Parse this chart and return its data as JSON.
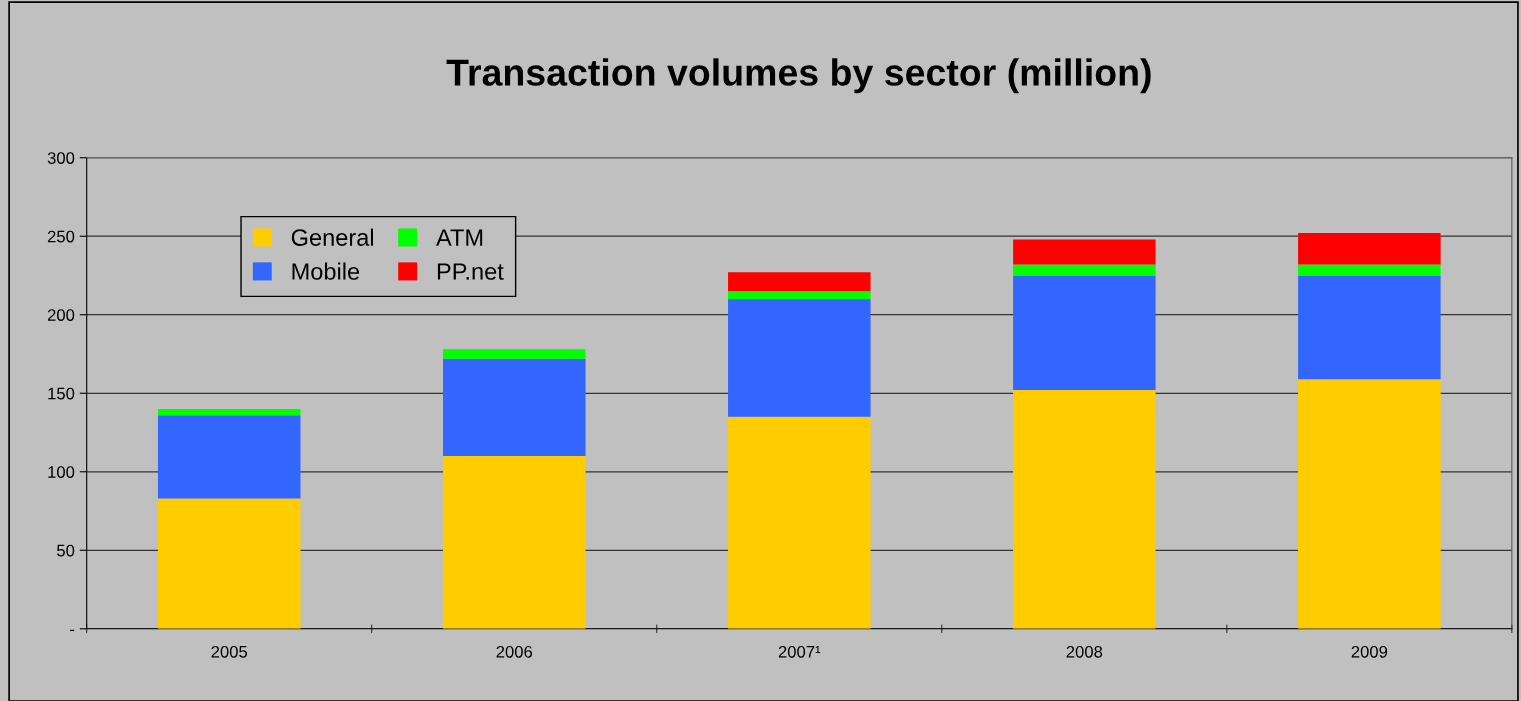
{
  "chart_data": {
    "type": "bar",
    "title": "Transaction volumes by sector (million)",
    "stacked": true,
    "categories": [
      "2005",
      "2006",
      "2007¹",
      "2008",
      "2009"
    ],
    "series": [
      {
        "name": "General",
        "color": "#ffcc00",
        "values": [
          83,
          110,
          135,
          152,
          159
        ]
      },
      {
        "name": "Mobile",
        "color": "#3366ff",
        "values": [
          53,
          62,
          75,
          73,
          66
        ]
      },
      {
        "name": "ATM",
        "color": "#00ff00",
        "values": [
          4,
          6,
          5,
          7,
          7
        ]
      },
      {
        "name": "PP.net",
        "color": "#ff0000",
        "values": [
          null,
          null,
          12,
          16,
          20
        ]
      }
    ],
    "ylim": [
      0,
      300
    ],
    "yticks": [
      {
        "value": 0,
        "label": "-"
      },
      50,
      100,
      150,
      200,
      250,
      300
    ],
    "grid": "y",
    "legend": "top left"
  }
}
